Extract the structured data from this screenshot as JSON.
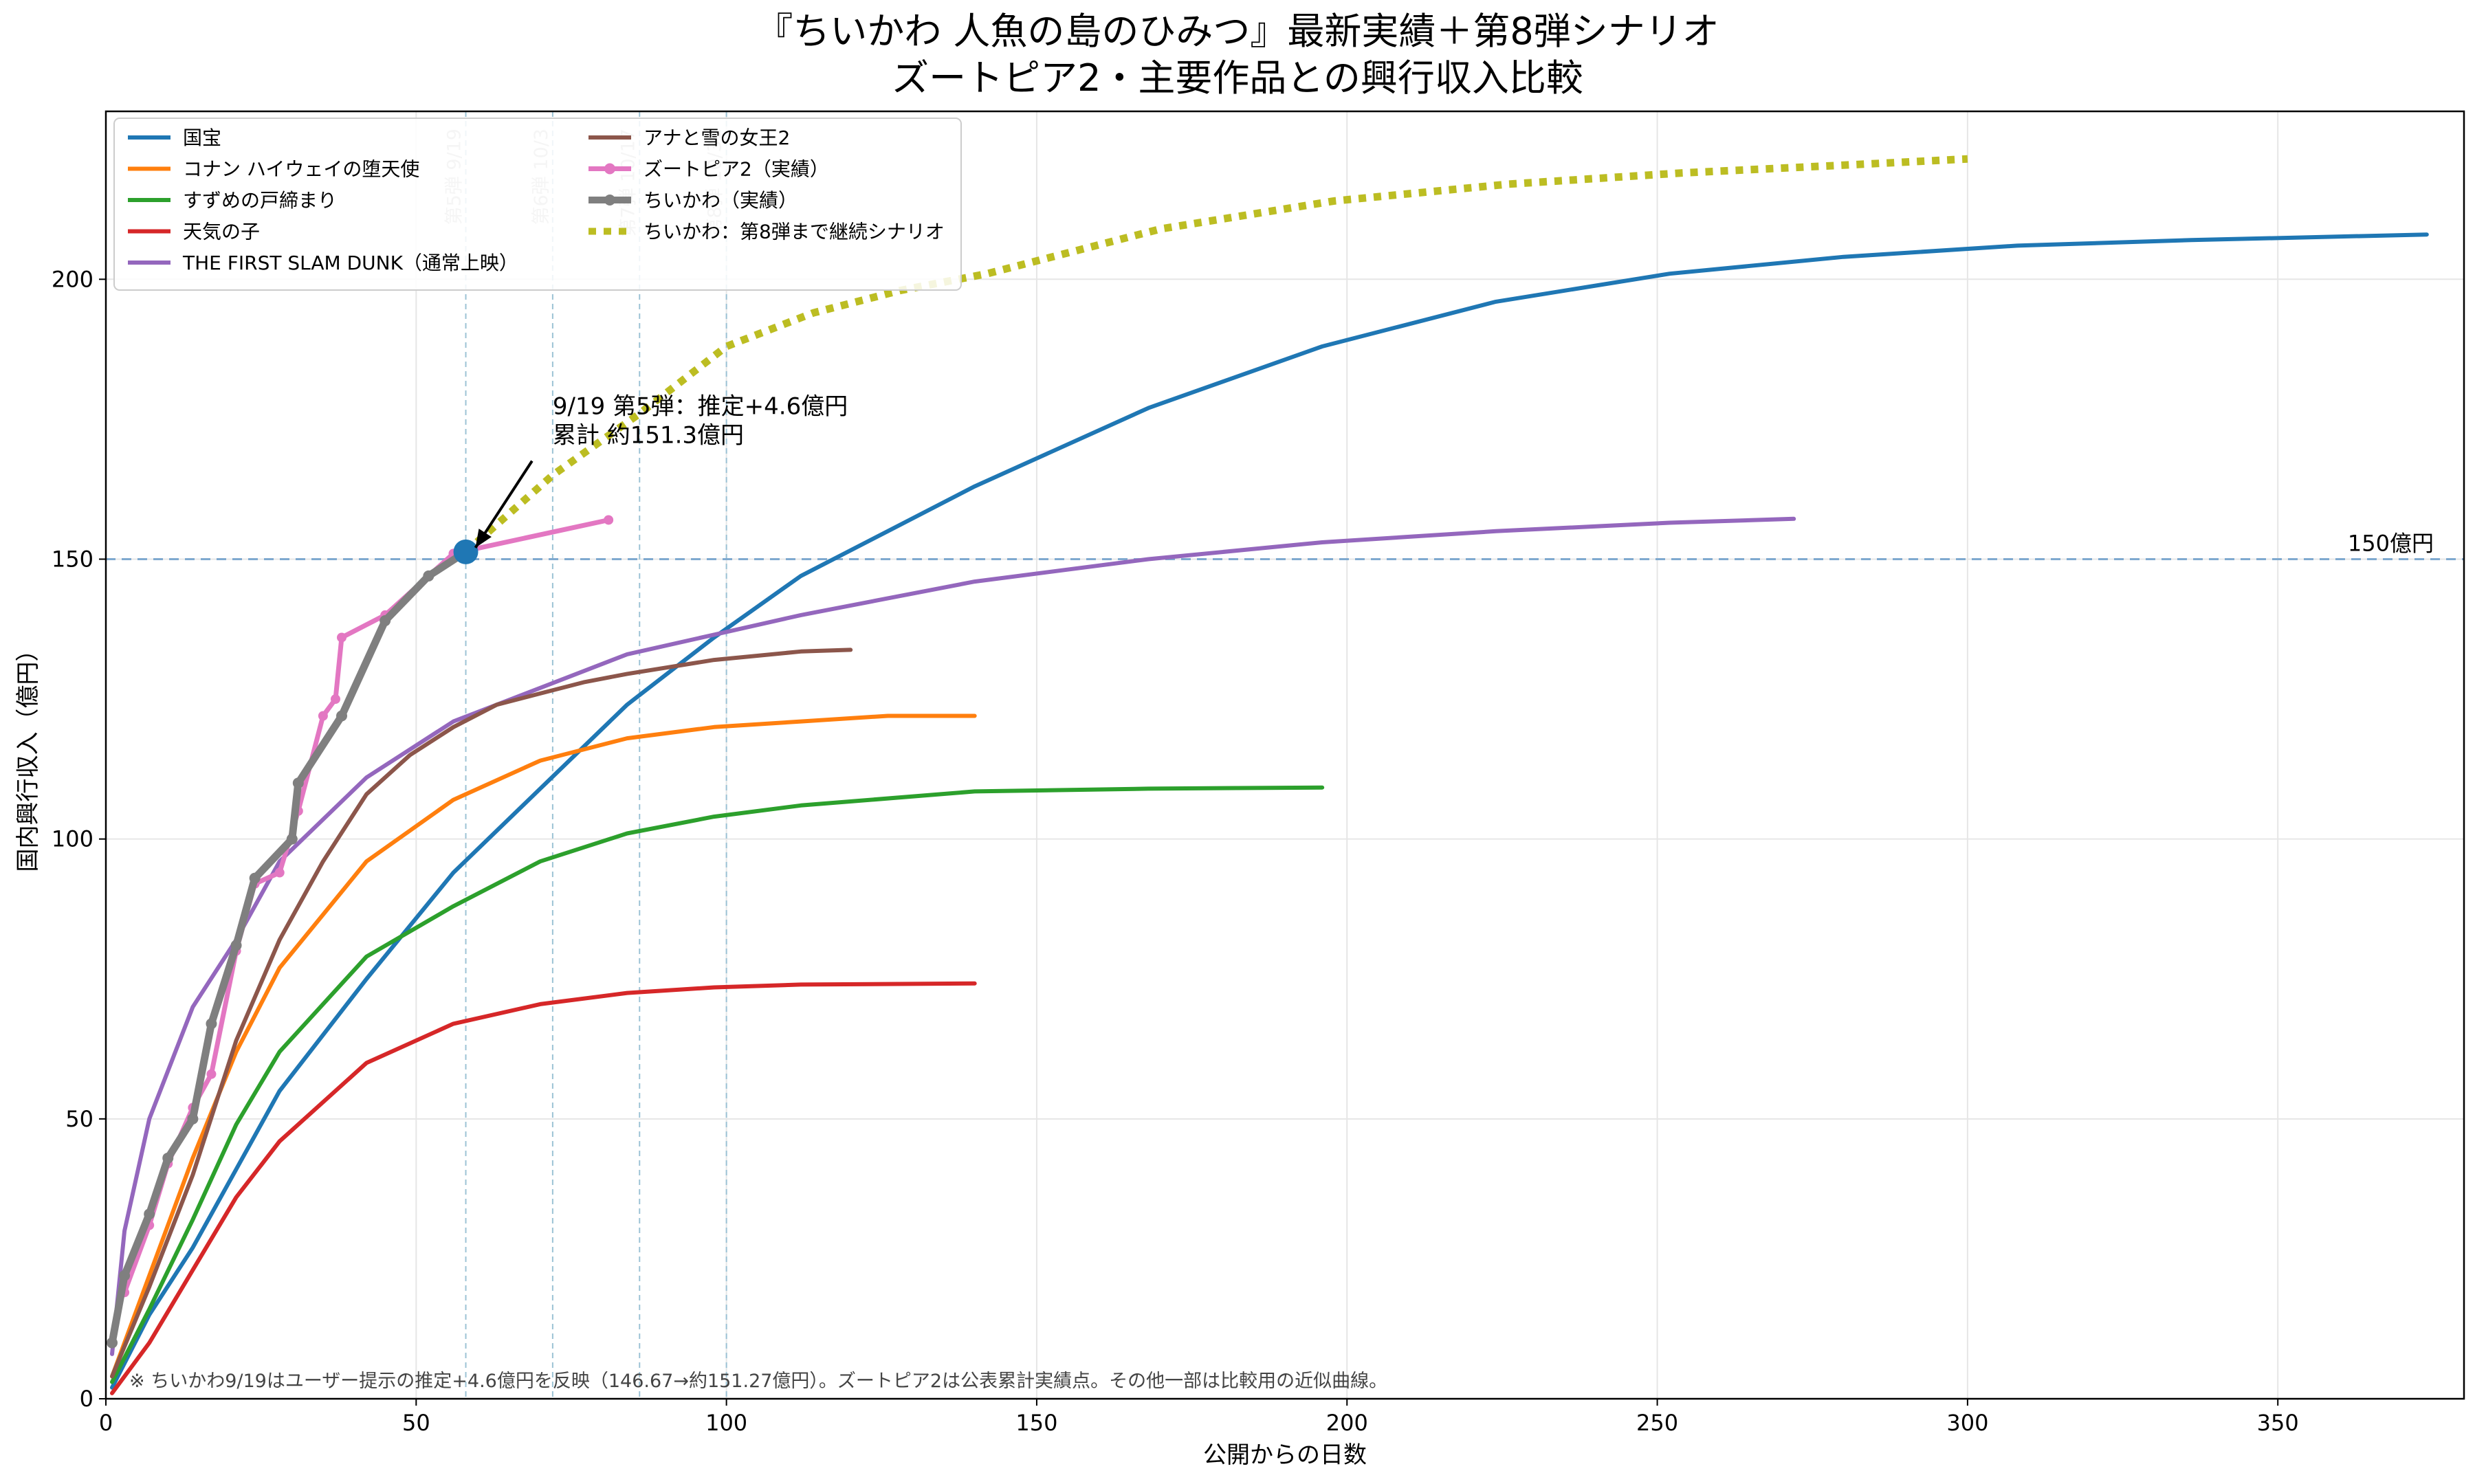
{
  "chart_data": {
    "type": "line",
    "title": "『ちいかわ 人魚の島のひみつ』最新実績＋第8弾シナリオ",
    "subtitle": "ズートピア2・主要作品との興行収入比較",
    "xlabel": "公開からの日数",
    "ylabel": "国内興行収入（億円）",
    "xlim": [
      0,
      380
    ],
    "ylim": [
      0,
      230
    ],
    "xticks": [
      0,
      50,
      100,
      150,
      200,
      250,
      300,
      350
    ],
    "yticks": [
      0,
      50,
      100,
      150,
      200
    ],
    "grid": true,
    "legend_position": "top-left",
    "reference_line": {
      "y": 150,
      "label": "150億円",
      "color": "#7fa9cf"
    },
    "release_markers": [
      {
        "x": 58,
        "label": "第5弾 9/19"
      },
      {
        "x": 72,
        "label": "第6弾 10/3"
      },
      {
        "x": 86,
        "label": "第7弾 10/17"
      },
      {
        "x": 100,
        "label": "第8弾 10/31"
      }
    ],
    "annotation": {
      "text_lines": [
        "9/19 第5弾：推定+4.6億円",
        "累計 約151.3億円"
      ],
      "point": [
        58,
        151.3
      ],
      "text_at": [
        72,
        170
      ]
    },
    "footnote": "※ ちいかわ9/19はユーザー提示の推定+4.6億円を反映（146.67→約151.27億円）。ズートピア2は公表累計実績点。その他一部は比較用の近似曲線。",
    "series": [
      {
        "name": "国宝",
        "color": "#1f77b4",
        "style": "solid",
        "width": 6,
        "points": [
          [
            1,
            2
          ],
          [
            7,
            15
          ],
          [
            14,
            27
          ],
          [
            21,
            41
          ],
          [
            28,
            55
          ],
          [
            42,
            75
          ],
          [
            56,
            94
          ],
          [
            70,
            109
          ],
          [
            84,
            124
          ],
          [
            98,
            136
          ],
          [
            112,
            147
          ],
          [
            126,
            155
          ],
          [
            140,
            163
          ],
          [
            168,
            177
          ],
          [
            196,
            188
          ],
          [
            224,
            196
          ],
          [
            252,
            201
          ],
          [
            280,
            204
          ],
          [
            308,
            206
          ],
          [
            336,
            207
          ],
          [
            374,
            208
          ]
        ]
      },
      {
        "name": "コナン ハイウェイの堕天使",
        "color": "#ff7f0e",
        "style": "solid",
        "width": 6,
        "points": [
          [
            1,
            4
          ],
          [
            7,
            22
          ],
          [
            14,
            43
          ],
          [
            21,
            62
          ],
          [
            28,
            77
          ],
          [
            42,
            96
          ],
          [
            56,
            107
          ],
          [
            70,
            114
          ],
          [
            84,
            118
          ],
          [
            98,
            120
          ],
          [
            112,
            121
          ],
          [
            126,
            122
          ],
          [
            140,
            122
          ]
        ]
      },
      {
        "name": "すずめの戸締まり",
        "color": "#2ca02c",
        "style": "solid",
        "width": 6,
        "points": [
          [
            1,
            3
          ],
          [
            7,
            16
          ],
          [
            14,
            32
          ],
          [
            21,
            49
          ],
          [
            28,
            62
          ],
          [
            42,
            79
          ],
          [
            56,
            88
          ],
          [
            70,
            96
          ],
          [
            84,
            101
          ],
          [
            98,
            104
          ],
          [
            112,
            106
          ],
          [
            140,
            108.5
          ],
          [
            168,
            109
          ],
          [
            196,
            109.2
          ]
        ]
      },
      {
        "name": "天気の子",
        "color": "#d62728",
        "style": "solid",
        "width": 6,
        "points": [
          [
            1,
            1
          ],
          [
            7,
            10
          ],
          [
            14,
            23
          ],
          [
            21,
            36
          ],
          [
            28,
            46
          ],
          [
            42,
            60
          ],
          [
            56,
            67
          ],
          [
            70,
            70.5
          ],
          [
            84,
            72.5
          ],
          [
            98,
            73.5
          ],
          [
            112,
            74
          ],
          [
            140,
            74.2
          ]
        ]
      },
      {
        "name": "THE FIRST SLAM DUNK（通常上映）",
        "color": "#9467bd",
        "style": "solid",
        "width": 6,
        "points": [
          [
            1,
            8
          ],
          [
            3,
            30
          ],
          [
            7,
            50
          ],
          [
            14,
            70
          ],
          [
            21,
            82
          ],
          [
            28,
            96
          ],
          [
            42,
            111
          ],
          [
            56,
            121
          ],
          [
            70,
            127
          ],
          [
            84,
            133
          ],
          [
            98,
            136.5
          ],
          [
            112,
            140
          ],
          [
            140,
            146
          ],
          [
            168,
            150
          ],
          [
            196,
            153
          ],
          [
            224,
            155
          ],
          [
            252,
            156.5
          ],
          [
            272,
            157.2
          ]
        ]
      },
      {
        "name": "アナと雪の女王2",
        "color": "#8c564b",
        "style": "solid",
        "width": 6,
        "points": [
          [
            1,
            4
          ],
          [
            7,
            20
          ],
          [
            14,
            40
          ],
          [
            21,
            64
          ],
          [
            28,
            82
          ],
          [
            35,
            96
          ],
          [
            42,
            108
          ],
          [
            49,
            115
          ],
          [
            56,
            120
          ],
          [
            63,
            124
          ],
          [
            70,
            126
          ],
          [
            77,
            128
          ],
          [
            84,
            129.5
          ],
          [
            98,
            132
          ],
          [
            112,
            133.5
          ],
          [
            120,
            133.8
          ]
        ]
      },
      {
        "name": "ズートピア2（実績）",
        "color": "#e377c2",
        "style": "solid-markers",
        "width": 7,
        "points": [
          [
            3,
            19
          ],
          [
            7,
            31
          ],
          [
            10,
            42
          ],
          [
            14,
            52
          ],
          [
            17,
            58
          ],
          [
            21,
            80
          ],
          [
            24,
            92
          ],
          [
            28,
            94
          ],
          [
            31,
            105
          ],
          [
            35,
            122
          ],
          [
            37,
            125
          ],
          [
            38,
            136
          ],
          [
            45,
            140
          ],
          [
            52,
            147
          ],
          [
            56,
            151
          ],
          [
            81,
            157
          ]
        ]
      },
      {
        "name": "ちいかわ（実績）",
        "color": "#7f7f7f",
        "style": "solid-markers",
        "width": 11,
        "points": [
          [
            1,
            10
          ],
          [
            3,
            22
          ],
          [
            7,
            33
          ],
          [
            10,
            43
          ],
          [
            14,
            50
          ],
          [
            17,
            67
          ],
          [
            21,
            81
          ],
          [
            24,
            93
          ],
          [
            30,
            100
          ],
          [
            31,
            110
          ],
          [
            38,
            122
          ],
          [
            45,
            139
          ],
          [
            52,
            147
          ],
          [
            58,
            151.3
          ]
        ]
      },
      {
        "name": "ちいかわ：第8弾まで継続シナリオ",
        "color": "#bcbd22",
        "style": "dotted",
        "width": 11,
        "points": [
          [
            58,
            151.3
          ],
          [
            72,
            165
          ],
          [
            86,
            176
          ],
          [
            100,
            188
          ],
          [
            114,
            194
          ],
          [
            128,
            198
          ],
          [
            142,
            201
          ],
          [
            170,
            209
          ],
          [
            198,
            214
          ],
          [
            226,
            217
          ],
          [
            254,
            219
          ],
          [
            282,
            220.5
          ],
          [
            300,
            221.5
          ]
        ]
      }
    ],
    "highlight_point": {
      "x": 58,
      "y": 151.3,
      "color": "#1f77b4"
    }
  }
}
